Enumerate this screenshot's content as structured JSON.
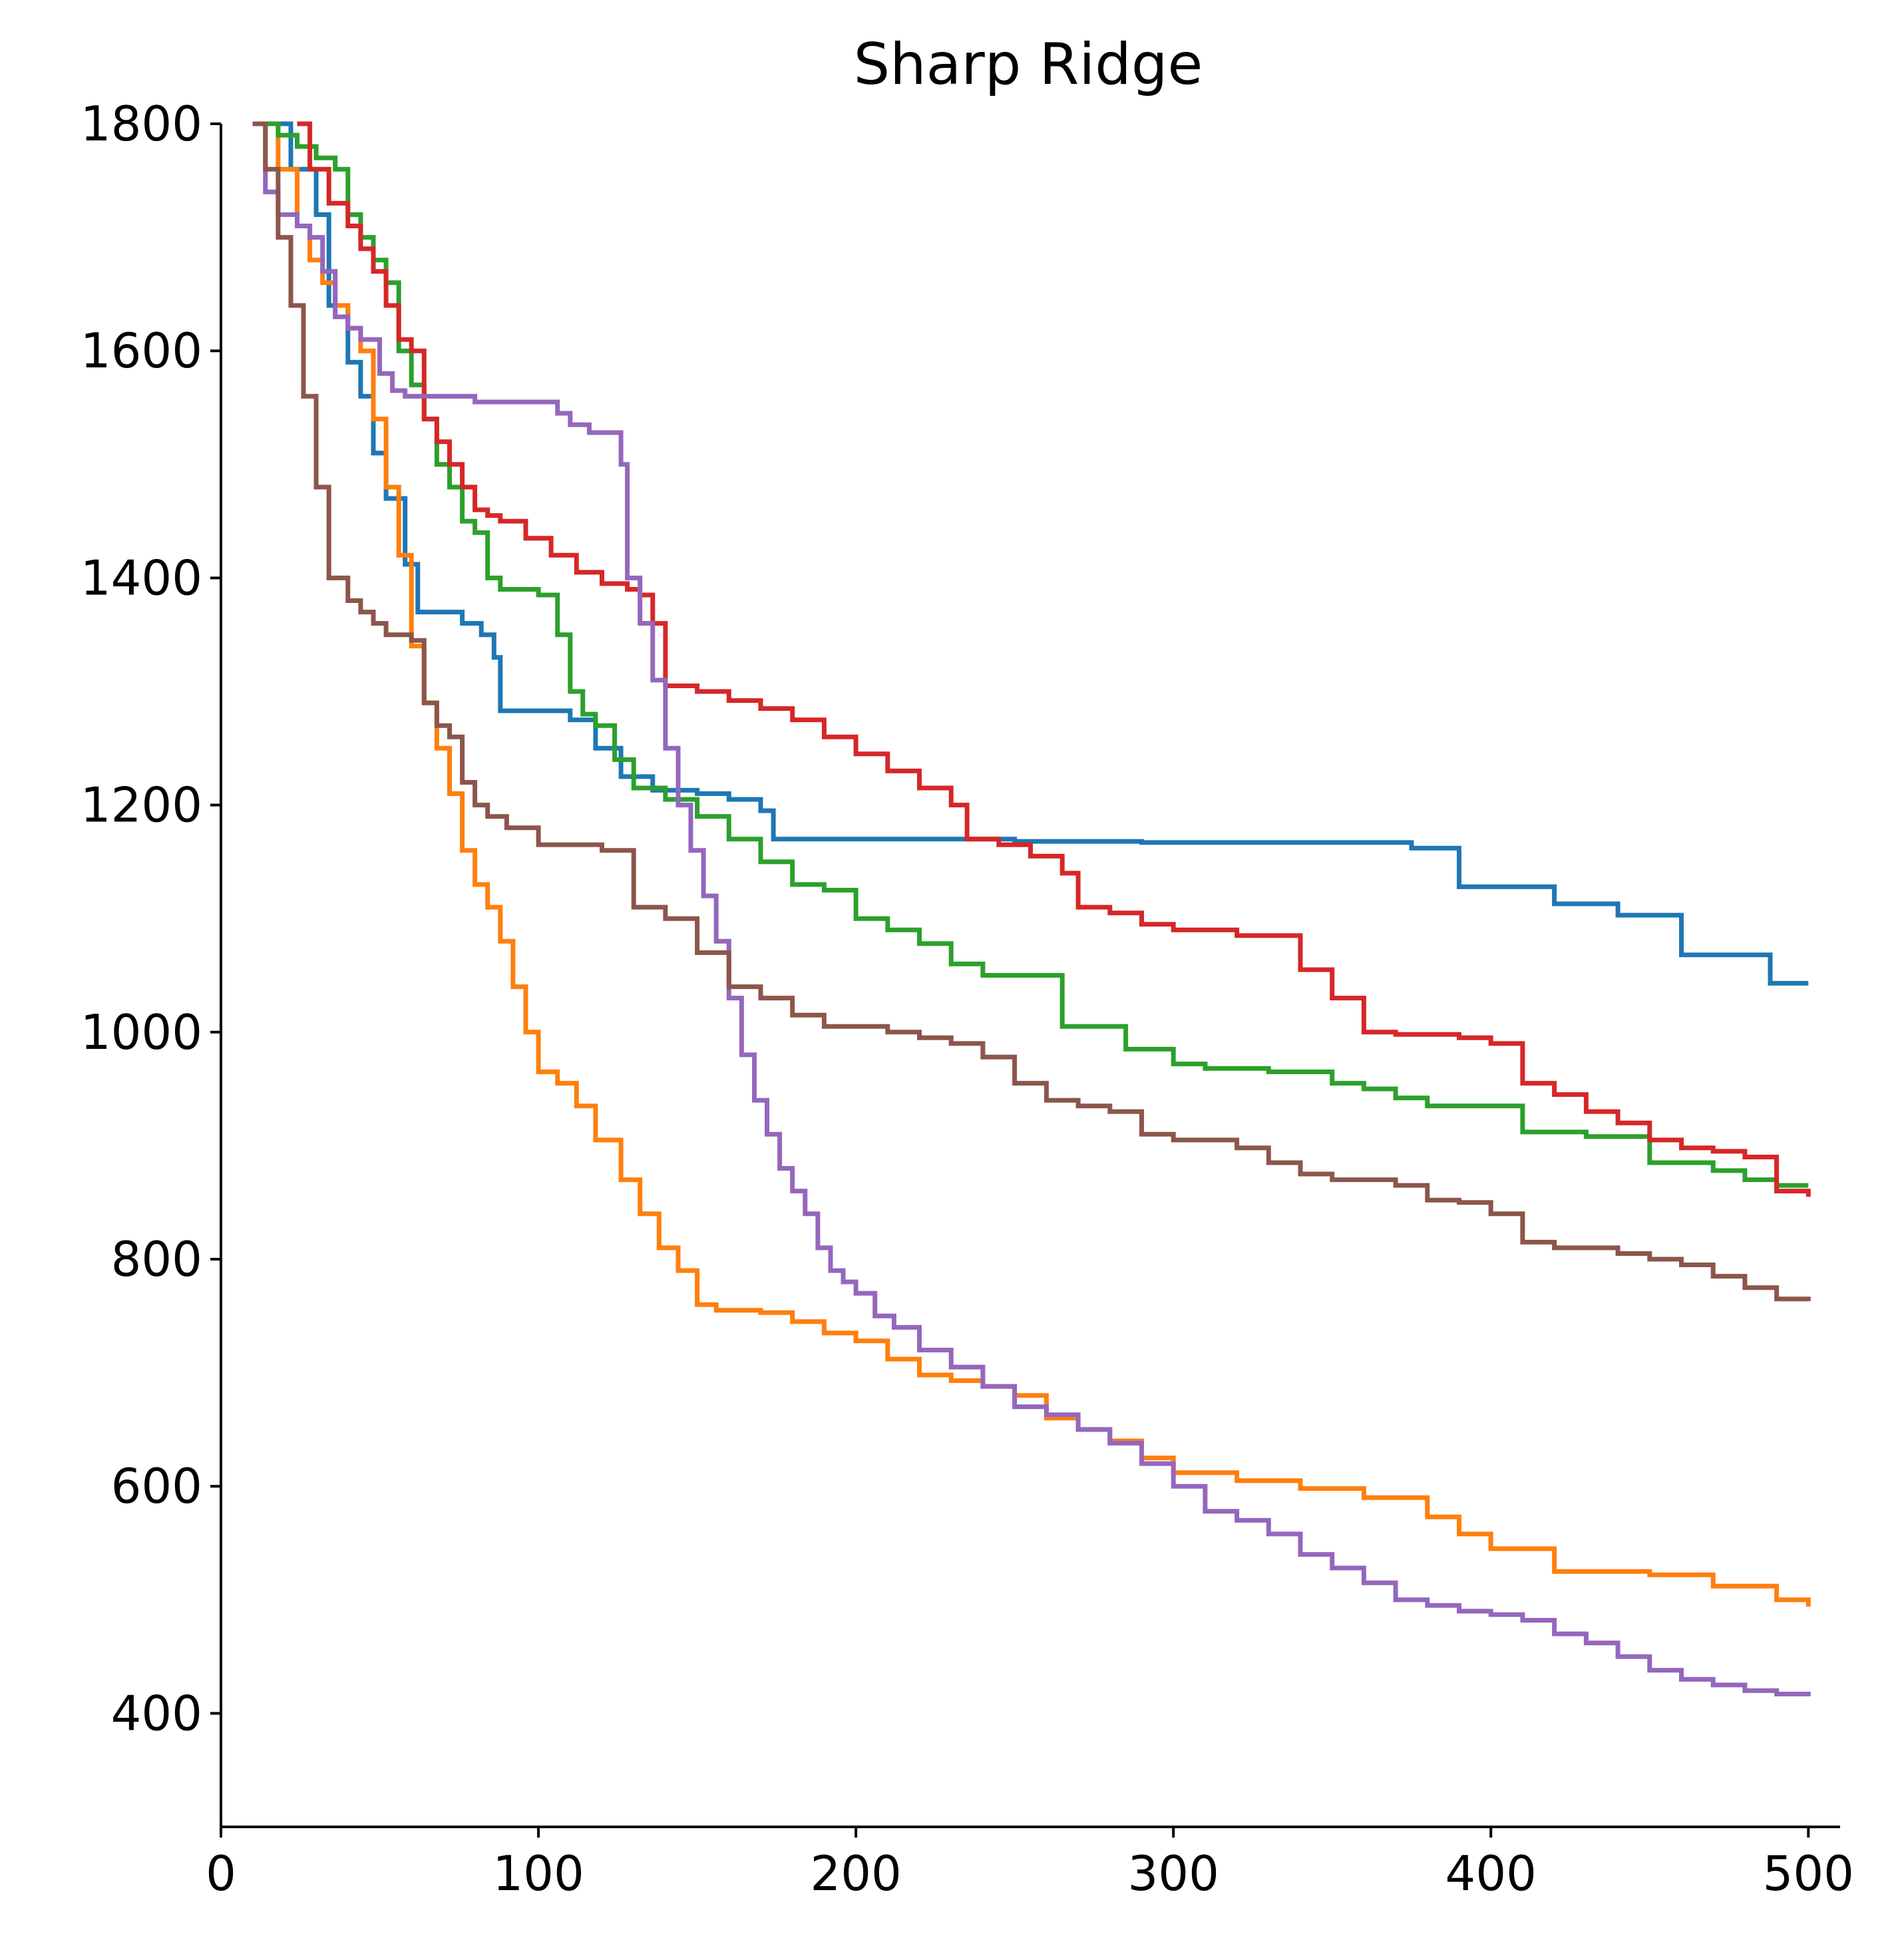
{
  "chart_data": {
    "type": "line",
    "title": "Sharp Ridge",
    "xlabel": "",
    "ylabel": "",
    "xlim": [
      0,
      510
    ],
    "ylim": [
      300,
      1800
    ],
    "xticks": [
      0,
      100,
      200,
      300,
      400,
      500
    ],
    "yticks": [
      400,
      600,
      800,
      1000,
      1200,
      1400,
      1600,
      1800
    ],
    "grid": false,
    "series": [
      {
        "color": "#1f77b4",
        "x": [
          10,
          22,
          30,
          34,
          40,
          44,
          48,
          52,
          58,
          62,
          70,
          76,
          82,
          86,
          88,
          100,
          110,
          118,
          126,
          136,
          150,
          160,
          170,
          174,
          200,
          250,
          280,
          290,
          300,
          350,
          370,
          375,
          385,
          390,
          400,
          410,
          420,
          430,
          440,
          455,
          460,
          470,
          480,
          488,
          495,
          500
        ],
        "y": [
          1800,
          1760,
          1720,
          1640,
          1590,
          1560,
          1510,
          1470,
          1412,
          1370,
          1370,
          1360,
          1350,
          1330,
          1283,
          1283,
          1275,
          1250,
          1225,
          1213,
          1210,
          1205,
          1195,
          1170,
          1170,
          1168,
          1168,
          1167,
          1167,
          1167,
          1167,
          1162,
          1162,
          1128,
          1128,
          1128,
          1113,
          1113,
          1103,
          1103,
          1068,
          1068,
          1068,
          1043,
          1043,
          1043
        ]
      },
      {
        "color": "#ff7f0e",
        "x": [
          10,
          18,
          24,
          28,
          32,
          36,
          40,
          44,
          48,
          52,
          56,
          60,
          64,
          68,
          72,
          76,
          80,
          84,
          88,
          92,
          96,
          100,
          106,
          112,
          118,
          126,
          132,
          138,
          144,
          150,
          156,
          160,
          164,
          170,
          180,
          190,
          200,
          210,
          220,
          230,
          240,
          250,
          260,
          270,
          280,
          290,
          300,
          320,
          340,
          360,
          380,
          390,
          400,
          420,
          450,
          470,
          490,
          500
        ],
        "y": [
          1800,
          1760,
          1710,
          1680,
          1660,
          1640,
          1620,
          1600,
          1540,
          1480,
          1420,
          1340,
          1290,
          1250,
          1210,
          1160,
          1130,
          1110,
          1080,
          1040,
          1000,
          965,
          955,
          935,
          905,
          870,
          840,
          810,
          790,
          760,
          755,
          755,
          755,
          753,
          745,
          735,
          728,
          712,
          698,
          693,
          688,
          680,
          660,
          650,
          640,
          625,
          612,
          605,
          598,
          590,
          573,
          558,
          545,
          525,
          522,
          512,
          500,
          494
        ]
      },
      {
        "color": "#2ca02c",
        "x": [
          10,
          18,
          24,
          30,
          36,
          40,
          44,
          48,
          52,
          56,
          60,
          64,
          68,
          72,
          76,
          80,
          84,
          88,
          92,
          96,
          100,
          106,
          110,
          114,
          118,
          124,
          130,
          140,
          150,
          160,
          170,
          180,
          190,
          200,
          210,
          220,
          230,
          240,
          260,
          265,
          280,
          285,
          300,
          310,
          330,
          350,
          360,
          370,
          380,
          400,
          410,
          430,
          450,
          470,
          480,
          490,
          500
        ],
        "y": [
          1800,
          1790,
          1780,
          1770,
          1760,
          1720,
          1700,
          1680,
          1660,
          1600,
          1570,
          1540,
          1500,
          1480,
          1450,
          1440,
          1400,
          1390,
          1390,
          1390,
          1385,
          1350,
          1300,
          1280,
          1270,
          1240,
          1215,
          1205,
          1190,
          1170,
          1150,
          1130,
          1125,
          1100,
          1090,
          1078,
          1060,
          1050,
          1050,
          1005,
          1005,
          985,
          972,
          968,
          965,
          955,
          950,
          942,
          935,
          935,
          912,
          908,
          885,
          878,
          870,
          865,
          865
        ]
      },
      {
        "color": "#d62728",
        "x": [
          24,
          28,
          34,
          40,
          44,
          48,
          52,
          56,
          60,
          64,
          68,
          72,
          76,
          80,
          84,
          88,
          96,
          104,
          112,
          120,
          128,
          132,
          136,
          140,
          150,
          160,
          170,
          180,
          190,
          200,
          210,
          220,
          230,
          235,
          245,
          255,
          265,
          270,
          280,
          290,
          300,
          320,
          340,
          350,
          360,
          370,
          390,
          400,
          410,
          420,
          430,
          440,
          450,
          460,
          470,
          480,
          490,
          500
        ],
        "y": [
          1800,
          1760,
          1730,
          1710,
          1690,
          1670,
          1640,
          1610,
          1600,
          1540,
          1520,
          1500,
          1480,
          1460,
          1455,
          1450,
          1435,
          1420,
          1405,
          1395,
          1390,
          1385,
          1360,
          1305,
          1300,
          1292,
          1285,
          1275,
          1260,
          1245,
          1230,
          1215,
          1200,
          1170,
          1165,
          1155,
          1140,
          1110,
          1105,
          1095,
          1090,
          1085,
          1055,
          1030,
          1000,
          998,
          995,
          990,
          955,
          945,
          930,
          920,
          905,
          898,
          895,
          890,
          860,
          855
        ]
      },
      {
        "color": "#9467bd",
        "x": [
          10,
          14,
          18,
          24,
          28,
          32,
          36,
          40,
          44,
          50,
          54,
          58,
          70,
          80,
          100,
          106,
          110,
          116,
          120,
          126,
          128,
          132,
          136,
          140,
          144,
          148,
          152,
          156,
          160,
          164,
          168,
          172,
          176,
          180,
          184,
          188,
          192,
          196,
          200,
          206,
          212,
          220,
          230,
          240,
          250,
          260,
          270,
          280,
          290,
          300,
          310,
          320,
          330,
          340,
          350,
          360,
          370,
          380,
          390,
          400,
          410,
          420,
          430,
          440,
          450,
          460,
          470,
          480,
          490,
          500
        ],
        "y": [
          1800,
          1740,
          1720,
          1710,
          1700,
          1670,
          1630,
          1620,
          1610,
          1580,
          1565,
          1560,
          1560,
          1555,
          1555,
          1545,
          1535,
          1528,
          1528,
          1500,
          1400,
          1360,
          1310,
          1250,
          1200,
          1160,
          1120,
          1080,
          1030,
          980,
          940,
          910,
          880,
          860,
          840,
          810,
          790,
          780,
          770,
          750,
          740,
          720,
          705,
          688,
          670,
          663,
          650,
          638,
          620,
          600,
          578,
          570,
          558,
          540,
          528,
          515,
          500,
          495,
          490,
          487,
          482,
          470,
          462,
          450,
          438,
          430,
          425,
          420,
          417,
          415
        ]
      },
      {
        "color": "#8c564b",
        "x": [
          10,
          14,
          18,
          22,
          26,
          30,
          34,
          40,
          44,
          48,
          52,
          60,
          64,
          68,
          72,
          76,
          80,
          84,
          90,
          100,
          110,
          120,
          130,
          140,
          150,
          160,
          170,
          180,
          190,
          200,
          210,
          220,
          230,
          240,
          250,
          260,
          270,
          280,
          290,
          300,
          310,
          320,
          330,
          340,
          350,
          370,
          380,
          390,
          400,
          410,
          420,
          440,
          450,
          460,
          470,
          480,
          490,
          500
        ],
        "y": [
          1800,
          1760,
          1700,
          1640,
          1560,
          1480,
          1400,
          1380,
          1370,
          1360,
          1350,
          1345,
          1290,
          1270,
          1260,
          1220,
          1200,
          1190,
          1180,
          1165,
          1165,
          1160,
          1110,
          1100,
          1070,
          1040,
          1030,
          1015,
          1005,
          1005,
          1000,
          995,
          990,
          978,
          955,
          940,
          935,
          930,
          910,
          905,
          905,
          898,
          885,
          875,
          870,
          865,
          852,
          850,
          840,
          815,
          810,
          805,
          800,
          795,
          785,
          775,
          765,
          763
        ]
      }
    ]
  }
}
